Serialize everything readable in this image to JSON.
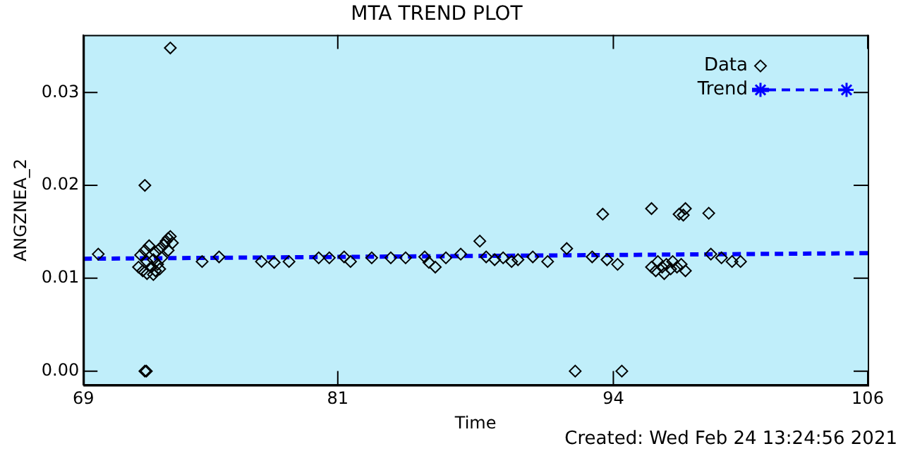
{
  "chart_data": {
    "type": "scatter",
    "title": "MTA TREND PLOT",
    "xlabel": "Time",
    "ylabel": "ANGZNEA_2",
    "xlim": [
      69,
      106
    ],
    "xticks": [
      69,
      81,
      94,
      106
    ],
    "ylim": [
      -0.0015,
      0.0362
    ],
    "yticks": [
      {
        "value": 0,
        "label": "0.00"
      },
      {
        "value": 0.01,
        "label": "0.01"
      },
      {
        "value": 0.02,
        "label": "0.02"
      },
      {
        "value": 0.03,
        "label": "0.03"
      }
    ],
    "grid": false,
    "legend": "top right",
    "series": [
      {
        "name": "Data",
        "color": "#000000",
        "marker": "diamond",
        "x": [
          69.7,
          71.6,
          71.7,
          71.8,
          71.9,
          72.0,
          72.0,
          72.1,
          72.2,
          72.3,
          72.3,
          72.4,
          72.5,
          72.6,
          72.6,
          72.7,
          72.8,
          72.9,
          73.0,
          73.1,
          73.2,
          73.0,
          72.4,
          71.9,
          71.9,
          71.97,
          73.1,
          74.6,
          75.4,
          77.4,
          78.0,
          78.7,
          80.1,
          80.6,
          81.3,
          81.6,
          82.6,
          83.5,
          84.2,
          85.1,
          85.3,
          85.6,
          86.1,
          86.8,
          87.7,
          88.0,
          88.4,
          88.8,
          89.2,
          89.5,
          90.2,
          90.9,
          91.8,
          92.2,
          93.0,
          93.5,
          93.7,
          94.2,
          94.4,
          95.8,
          95.8,
          96.0,
          96.1,
          96.3,
          96.4,
          96.5,
          96.7,
          96.8,
          97.0,
          97.2,
          97.4,
          97.1,
          97.3,
          97.4,
          98.5,
          98.6,
          99.1,
          99.6,
          100.0
        ],
        "values": [
          0.0126,
          0.0112,
          0.0125,
          0.0108,
          0.013,
          0.0118,
          0.0105,
          0.0135,
          0.0112,
          0.012,
          0.0104,
          0.0128,
          0.0115,
          0.011,
          0.0132,
          0.0122,
          0.0136,
          0.014,
          0.0143,
          0.0145,
          0.0138,
          0.013,
          0.0108,
          0.0,
          0.02,
          0.0,
          0.0348,
          0.0118,
          0.0123,
          0.0118,
          0.0117,
          0.0118,
          0.0122,
          0.0122,
          0.0123,
          0.0118,
          0.0122,
          0.0122,
          0.0122,
          0.0123,
          0.0117,
          0.0112,
          0.0122,
          0.0126,
          0.014,
          0.0123,
          0.012,
          0.0122,
          0.0118,
          0.012,
          0.0123,
          0.0118,
          0.0132,
          0.0,
          0.0123,
          0.0169,
          0.012,
          0.0115,
          0.0,
          0.0175,
          0.0112,
          0.0108,
          0.0118,
          0.0112,
          0.0105,
          0.0115,
          0.011,
          0.0118,
          0.0112,
          0.0115,
          0.0108,
          0.0169,
          0.0168,
          0.0175,
          0.017,
          0.0126,
          0.0122,
          0.0118,
          0.0118
        ]
      },
      {
        "name": "Trend",
        "type": "line",
        "color": "#0000ff",
        "line_style": "dashed",
        "marker": "none",
        "x": [
          69,
          106
        ],
        "values": [
          0.0121,
          0.0127
        ]
      }
    ],
    "annotations": [
      "Created: Wed Feb 24 13:24:56 2021"
    ]
  }
}
